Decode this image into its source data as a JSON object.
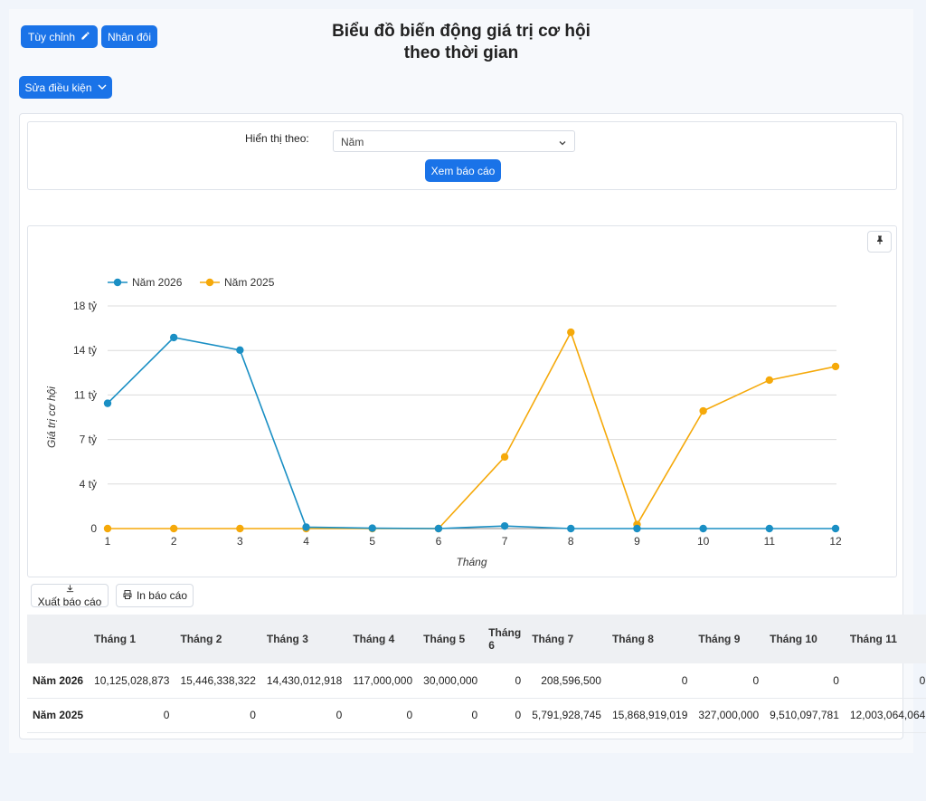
{
  "header": {
    "customize_label": "Tùy chỉnh",
    "duplicate_label": "Nhân đôi",
    "edit_conditions_label": "Sửa điều kiện",
    "title_line1": "Biểu đồ biến động giá trị cơ hội",
    "title_line2": "theo thời gian"
  },
  "filter": {
    "label": "Hiển thị theo:",
    "selected": "Năm",
    "view_button": "Xem báo cáo"
  },
  "actions": {
    "export_label": "Xuất báo cáo",
    "print_label": "In báo cáo"
  },
  "colors": {
    "accent": "#1a73e8",
    "series_2026": "#1a8fc4",
    "series_2025": "#f5a90a"
  },
  "chart_data": {
    "type": "line",
    "xlabel": "Tháng",
    "ylabel": "Giá trị cơ hội",
    "x": [
      "1",
      "2",
      "3",
      "4",
      "5",
      "6",
      "7",
      "8",
      "9",
      "10",
      "11",
      "12"
    ],
    "ylim": [
      0,
      18000000000
    ],
    "yticks": [
      0,
      3600000000,
      7200000000,
      10800000000,
      14400000000,
      18000000000
    ],
    "ytick_labels": [
      "0",
      "4 tỷ",
      "7 tỷ",
      "11 tỷ",
      "14 tỷ",
      "18 tỷ"
    ],
    "grid": true,
    "legend_position": "top-left",
    "series": [
      {
        "name": "Năm 2026",
        "values": [
          10125028873,
          15446338322,
          14430012918,
          117000000,
          30000000,
          0,
          208596500,
          0,
          0,
          0,
          0,
          0
        ]
      },
      {
        "name": "Năm 2025",
        "values": [
          0,
          0,
          0,
          0,
          0,
          0,
          5791928745,
          15868919019,
          327000000,
          9510097781,
          12003064064,
          13100000000
        ]
      }
    ]
  },
  "table": {
    "headers": [
      "",
      "Tháng 1",
      "Tháng 2",
      "Tháng 3",
      "Tháng 4",
      "Tháng 5",
      "Tháng 6",
      "Tháng 7",
      "Tháng 8",
      "Tháng 9",
      "Tháng 10",
      "Tháng 11"
    ],
    "rows": [
      {
        "label": "Năm 2026",
        "cells": [
          "10,125,028,873",
          "15,446,338,322",
          "14,430,012,918",
          "117,000,000",
          "30,000,000",
          "0",
          "208,596,500",
          "0",
          "0",
          "0",
          "0"
        ]
      },
      {
        "label": "Năm 2025",
        "cells": [
          "0",
          "0",
          "0",
          "0",
          "0",
          "0",
          "5,791,928,745",
          "15,868,919,019",
          "327,000,000",
          "9,510,097,781",
          "12,003,064,064"
        ]
      }
    ]
  }
}
